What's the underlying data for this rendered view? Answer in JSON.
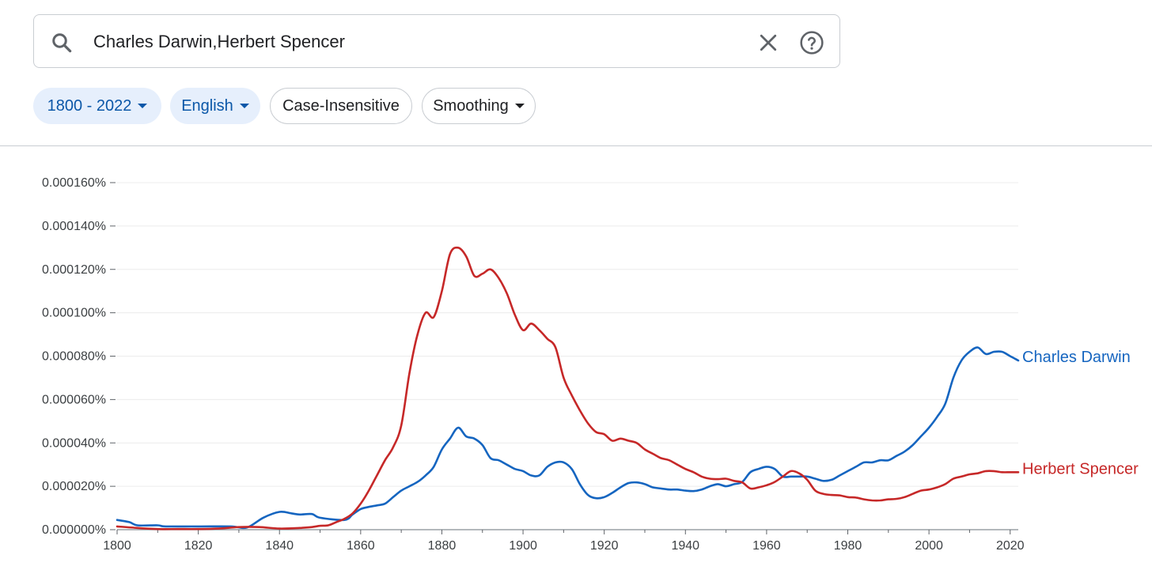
{
  "search": {
    "query": "Charles Darwin,Herbert Spencer",
    "icon": "search-icon",
    "clear_icon": "close-icon",
    "help_icon": "help-icon"
  },
  "filters": {
    "year_range": "1800 - 2022",
    "language": "English",
    "case": "Case-Insensitive",
    "smoothing": "Smoothing"
  },
  "colors": {
    "darwin": "#1565c0",
    "spencer": "#c62828",
    "chip_bg": "#e6effc",
    "chip_text": "#0b57a8"
  },
  "chart_data": {
    "type": "line",
    "xlim": [
      1800,
      2022
    ],
    "ylim": [
      0,
      0.00016
    ],
    "x_ticks": [
      "1800",
      "1820",
      "1840",
      "1860",
      "1880",
      "1900",
      "1920",
      "1940",
      "1960",
      "1980",
      "2000",
      "2020"
    ],
    "y_ticks": [
      "0.000000%",
      "0.000020%",
      "0.000040%",
      "0.000060%",
      "0.000080%",
      "0.000100%",
      "0.000120%",
      "0.000140%",
      "0.000160%"
    ],
    "grid": true,
    "legend": "line-end labels",
    "series": [
      {
        "name": "Charles Darwin",
        "color": "#1565c0",
        "points": [
          [
            1800,
            4.5e-06
          ],
          [
            1803,
            3.5e-06
          ],
          [
            1805,
            2e-06
          ],
          [
            1810,
            2e-06
          ],
          [
            1812,
            1.5e-06
          ],
          [
            1820,
            1.5e-06
          ],
          [
            1828,
            1.5e-06
          ],
          [
            1832,
            1e-06
          ],
          [
            1836,
            5.5e-06
          ],
          [
            1840,
            8.2e-06
          ],
          [
            1843,
            7.5e-06
          ],
          [
            1845,
            7e-06
          ],
          [
            1848,
            7.2e-06
          ],
          [
            1850,
            5.5e-06
          ],
          [
            1856,
            4.5e-06
          ],
          [
            1858,
            7e-06
          ],
          [
            1860,
            9.5e-06
          ],
          [
            1862,
            1.05e-05
          ],
          [
            1864,
            1.12e-05
          ],
          [
            1866,
            1.2e-05
          ],
          [
            1868,
            1.5e-05
          ],
          [
            1870,
            1.8e-05
          ],
          [
            1872,
            2e-05
          ],
          [
            1874,
            2.2e-05
          ],
          [
            1876,
            2.5e-05
          ],
          [
            1878,
            2.9e-05
          ],
          [
            1880,
            3.7e-05
          ],
          [
            1882,
            4.2e-05
          ],
          [
            1884,
            4.7e-05
          ],
          [
            1886,
            4.3e-05
          ],
          [
            1888,
            4.2e-05
          ],
          [
            1890,
            3.9e-05
          ],
          [
            1892,
            3.3e-05
          ],
          [
            1894,
            3.2e-05
          ],
          [
            1896,
            3e-05
          ],
          [
            1898,
            2.8e-05
          ],
          [
            1900,
            2.7e-05
          ],
          [
            1902,
            2.5e-05
          ],
          [
            1904,
            2.5e-05
          ],
          [
            1906,
            2.9e-05
          ],
          [
            1908,
            3.1e-05
          ],
          [
            1910,
            3.1e-05
          ],
          [
            1912,
            2.8e-05
          ],
          [
            1914,
            2.1e-05
          ],
          [
            1916,
            1.6e-05
          ],
          [
            1918,
            1.45e-05
          ],
          [
            1920,
            1.5e-05
          ],
          [
            1922,
            1.7e-05
          ],
          [
            1924,
            1.95e-05
          ],
          [
            1926,
            2.15e-05
          ],
          [
            1928,
            2.18e-05
          ],
          [
            1930,
            2.1e-05
          ],
          [
            1932,
            1.95e-05
          ],
          [
            1934,
            1.9e-05
          ],
          [
            1936,
            1.85e-05
          ],
          [
            1938,
            1.85e-05
          ],
          [
            1940,
            1.8e-05
          ],
          [
            1942,
            1.78e-05
          ],
          [
            1944,
            1.85e-05
          ],
          [
            1946,
            2e-05
          ],
          [
            1948,
            2.1e-05
          ],
          [
            1950,
            2e-05
          ],
          [
            1952,
            2.1e-05
          ],
          [
            1954,
            2.2e-05
          ],
          [
            1956,
            2.65e-05
          ],
          [
            1958,
            2.8e-05
          ],
          [
            1960,
            2.9e-05
          ],
          [
            1962,
            2.8e-05
          ],
          [
            1964,
            2.45e-05
          ],
          [
            1966,
            2.45e-05
          ],
          [
            1968,
            2.45e-05
          ],
          [
            1970,
            2.45e-05
          ],
          [
            1972,
            2.35e-05
          ],
          [
            1974,
            2.25e-05
          ],
          [
            1976,
            2.3e-05
          ],
          [
            1978,
            2.5e-05
          ],
          [
            1980,
            2.7e-05
          ],
          [
            1982,
            2.9e-05
          ],
          [
            1984,
            3.1e-05
          ],
          [
            1986,
            3.1e-05
          ],
          [
            1988,
            3.2e-05
          ],
          [
            1990,
            3.2e-05
          ],
          [
            1992,
            3.4e-05
          ],
          [
            1994,
            3.6e-05
          ],
          [
            1996,
            3.9e-05
          ],
          [
            1998,
            4.3e-05
          ],
          [
            2000,
            4.7e-05
          ],
          [
            2002,
            5.2e-05
          ],
          [
            2004,
            5.8e-05
          ],
          [
            2006,
            7e-05
          ],
          [
            2008,
            7.8e-05
          ],
          [
            2010,
            8.2e-05
          ],
          [
            2012,
            8.4e-05
          ],
          [
            2014,
            8.1e-05
          ],
          [
            2016,
            8.2e-05
          ],
          [
            2018,
            8.2e-05
          ],
          [
            2020,
            8e-05
          ],
          [
            2022,
            7.8e-05
          ]
        ]
      },
      {
        "name": "Herbert Spencer",
        "color": "#c62828",
        "points": [
          [
            1800,
            1.5e-06
          ],
          [
            1805,
            8e-07
          ],
          [
            1810,
            3e-07
          ],
          [
            1815,
            3e-07
          ],
          [
            1820,
            3e-07
          ],
          [
            1825,
            5e-07
          ],
          [
            1830,
            1.2e-06
          ],
          [
            1835,
            1.2e-06
          ],
          [
            1840,
            5e-07
          ],
          [
            1845,
            8e-07
          ],
          [
            1848,
            1.2e-06
          ],
          [
            1850,
            1.8e-06
          ],
          [
            1852,
            2e-06
          ],
          [
            1854,
            3.5e-06
          ],
          [
            1856,
            5e-06
          ],
          [
            1858,
            7.5e-06
          ],
          [
            1860,
            1.2e-05
          ],
          [
            1862,
            1.8e-05
          ],
          [
            1864,
            2.5e-05
          ],
          [
            1866,
            3.2e-05
          ],
          [
            1868,
            3.8e-05
          ],
          [
            1870,
            4.8e-05
          ],
          [
            1872,
            7.2e-05
          ],
          [
            1874,
            9e-05
          ],
          [
            1876,
            0.0001
          ],
          [
            1878,
            9.8e-05
          ],
          [
            1880,
            0.00011
          ],
          [
            1882,
            0.000127
          ],
          [
            1884,
            0.00013
          ],
          [
            1886,
            0.000126
          ],
          [
            1888,
            0.000117
          ],
          [
            1890,
            0.000118
          ],
          [
            1892,
            0.00012
          ],
          [
            1894,
            0.000116
          ],
          [
            1896,
            0.000109
          ],
          [
            1898,
            9.9e-05
          ],
          [
            1900,
            9.2e-05
          ],
          [
            1902,
            9.5e-05
          ],
          [
            1904,
            9.2e-05
          ],
          [
            1906,
            8.8e-05
          ],
          [
            1908,
            8.4e-05
          ],
          [
            1910,
            7e-05
          ],
          [
            1912,
            6.2e-05
          ],
          [
            1914,
            5.5e-05
          ],
          [
            1916,
            4.9e-05
          ],
          [
            1918,
            4.5e-05
          ],
          [
            1920,
            4.4e-05
          ],
          [
            1922,
            4.1e-05
          ],
          [
            1924,
            4.2e-05
          ],
          [
            1926,
            4.1e-05
          ],
          [
            1928,
            4e-05
          ],
          [
            1930,
            3.7e-05
          ],
          [
            1932,
            3.5e-05
          ],
          [
            1934,
            3.3e-05
          ],
          [
            1936,
            3.2e-05
          ],
          [
            1938,
            3e-05
          ],
          [
            1940,
            2.8e-05
          ],
          [
            1942,
            2.65e-05
          ],
          [
            1944,
            2.45e-05
          ],
          [
            1946,
            2.35e-05
          ],
          [
            1948,
            2.33e-05
          ],
          [
            1950,
            2.35e-05
          ],
          [
            1952,
            2.25e-05
          ],
          [
            1954,
            2.18e-05
          ],
          [
            1956,
            1.9e-05
          ],
          [
            1958,
            1.95e-05
          ],
          [
            1960,
            2.05e-05
          ],
          [
            1962,
            2.2e-05
          ],
          [
            1964,
            2.45e-05
          ],
          [
            1966,
            2.7e-05
          ],
          [
            1968,
            2.6e-05
          ],
          [
            1970,
            2.3e-05
          ],
          [
            1972,
            1.8e-05
          ],
          [
            1974,
            1.65e-05
          ],
          [
            1976,
            1.6e-05
          ],
          [
            1978,
            1.58e-05
          ],
          [
            1980,
            1.5e-05
          ],
          [
            1982,
            1.48e-05
          ],
          [
            1984,
            1.4e-05
          ],
          [
            1986,
            1.35e-05
          ],
          [
            1988,
            1.35e-05
          ],
          [
            1990,
            1.4e-05
          ],
          [
            1992,
            1.42e-05
          ],
          [
            1994,
            1.5e-05
          ],
          [
            1996,
            1.65e-05
          ],
          [
            1998,
            1.8e-05
          ],
          [
            2000,
            1.85e-05
          ],
          [
            2002,
            1.95e-05
          ],
          [
            2004,
            2.1e-05
          ],
          [
            2006,
            2.35e-05
          ],
          [
            2008,
            2.45e-05
          ],
          [
            2010,
            2.55e-05
          ],
          [
            2012,
            2.6e-05
          ],
          [
            2014,
            2.7e-05
          ],
          [
            2016,
            2.7e-05
          ],
          [
            2018,
            2.65e-05
          ],
          [
            2020,
            2.65e-05
          ],
          [
            2022,
            2.65e-05
          ]
        ]
      }
    ]
  }
}
